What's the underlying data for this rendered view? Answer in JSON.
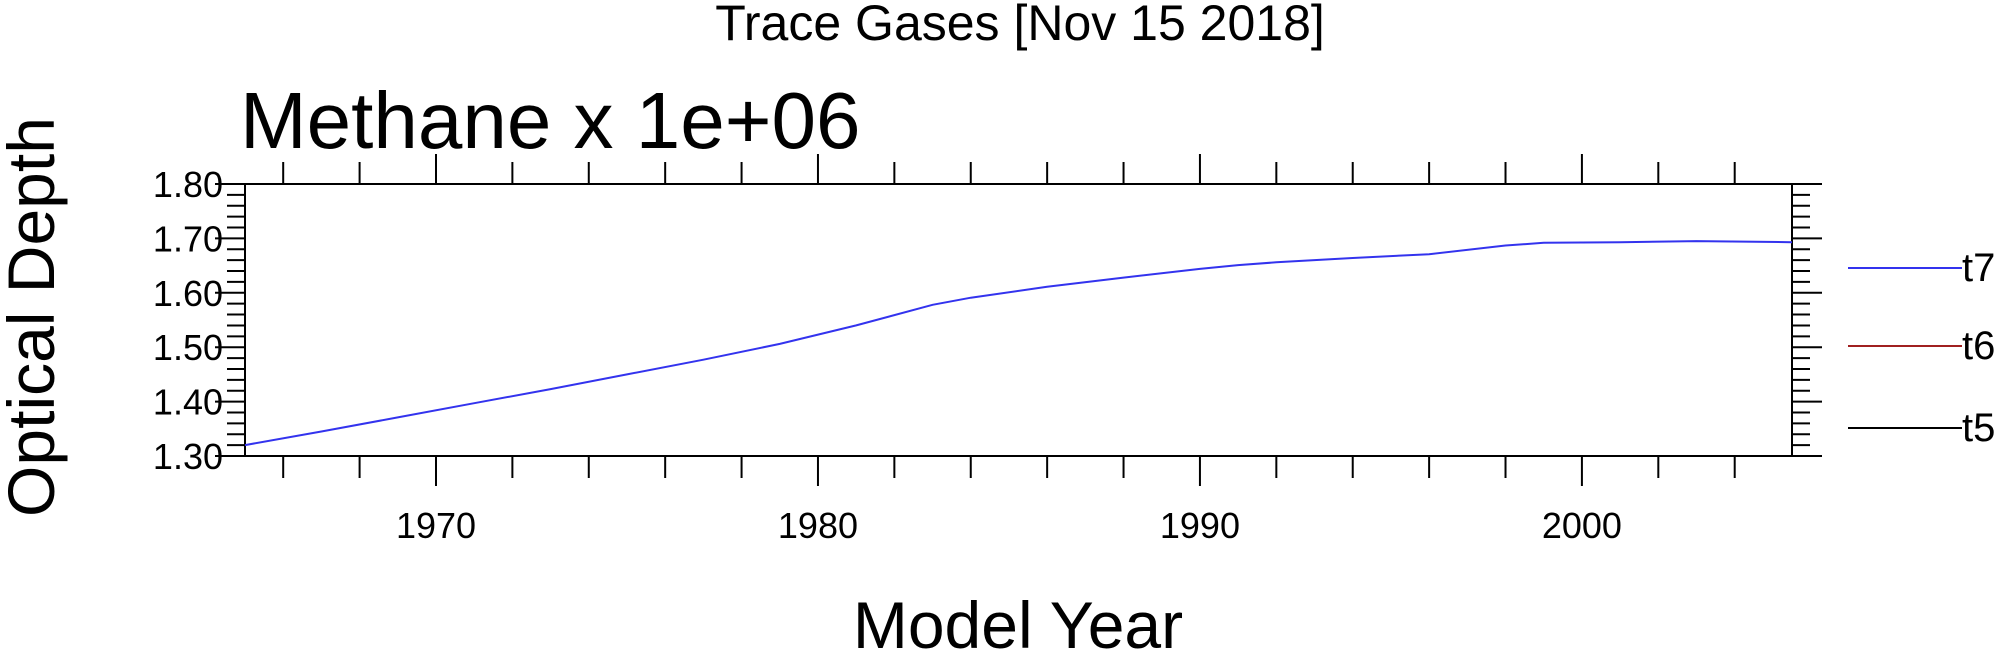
{
  "chart_data": {
    "type": "line",
    "suptitle": "Trace Gases [Nov 15 2018]",
    "title": "Methane x 1e+06",
    "xlabel": "Model Year",
    "ylabel": "Optical Depth",
    "xlim": [
      1965,
      2005.5
    ],
    "ylim": [
      1.3,
      1.8
    ],
    "xticks": [
      1970,
      1980,
      1990,
      2000
    ],
    "xtick_labels": [
      "1970",
      "1980",
      "1990",
      "2000"
    ],
    "yticks": [
      1.3,
      1.4,
      1.5,
      1.6,
      1.7,
      1.8
    ],
    "ytick_labels": [
      "1.30",
      "1.40",
      "1.50",
      "1.60",
      "1.70",
      "1.80"
    ],
    "grid": false,
    "legend_position": "right",
    "series": [
      {
        "name": "t7",
        "color": "#3333ee",
        "x": [
          1965,
          1967,
          1969,
          1971,
          1973,
          1975,
          1977,
          1979,
          1981,
          1983,
          1984,
          1986,
          1988,
          1990,
          1991,
          1992,
          1994,
          1996,
          1998,
          1999,
          2001,
          2003,
          2005.5
        ],
        "y": [
          1.32,
          1.345,
          1.371,
          1.397,
          1.423,
          1.45,
          1.477,
          1.506,
          1.54,
          1.578,
          1.591,
          1.611,
          1.628,
          1.644,
          1.651,
          1.656,
          1.664,
          1.671,
          1.687,
          1.692,
          1.693,
          1.695,
          1.693
        ]
      },
      {
        "name": "t6",
        "color": "#a02020",
        "x": [],
        "y": []
      },
      {
        "name": "t5",
        "color": "#000000",
        "x": [],
        "y": []
      }
    ]
  }
}
